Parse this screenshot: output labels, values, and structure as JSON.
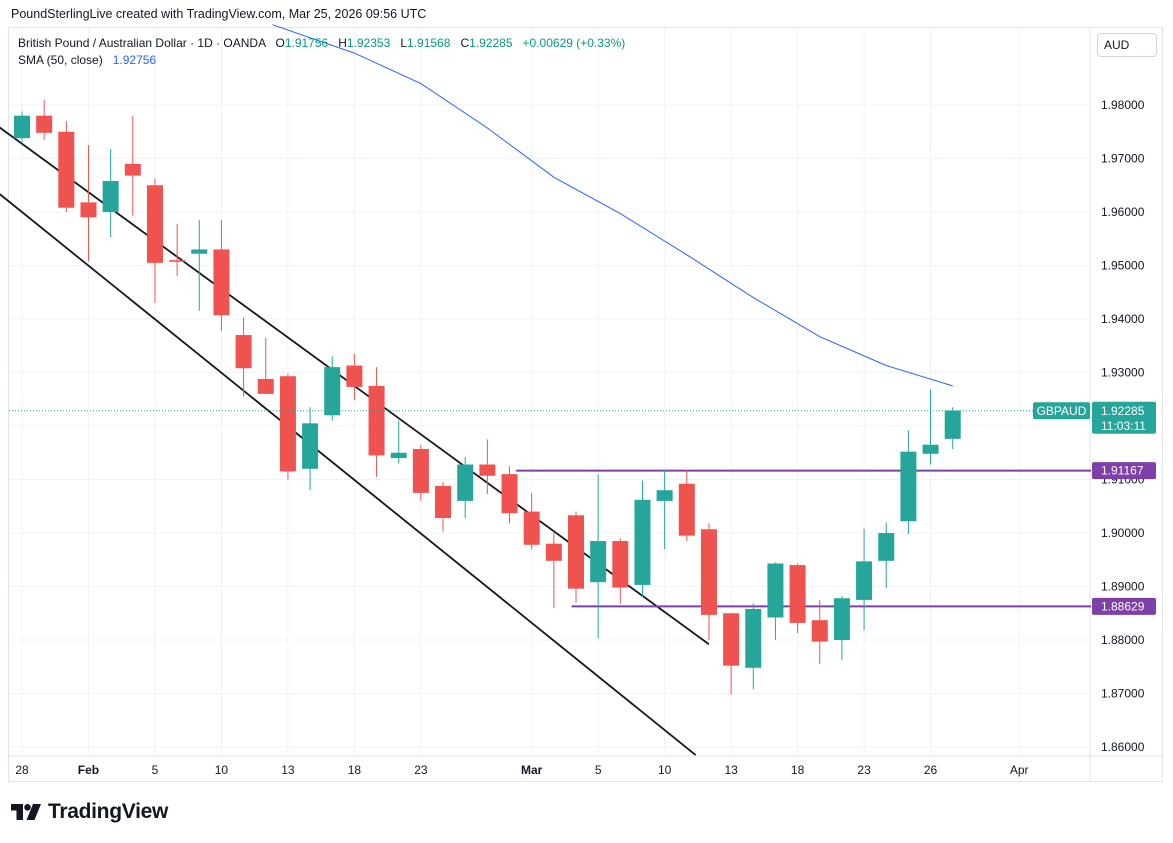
{
  "header": "PoundSterlingLive created with TradingView.com, Mar 25, 2026 09:56 UTC",
  "legend": {
    "symbol": "British Pound / Australian Dollar · 1D · OANDA",
    "o_label": "O",
    "o_value": "1.91756",
    "h_label": "H",
    "h_value": "1.92353",
    "l_label": "L",
    "l_value": "1.91568",
    "c_label": "C",
    "c_value": "1.92285",
    "change": "+0.00629 (+0.33%)",
    "sma_label": "SMA (50, close)",
    "sma_value": "1.92756"
  },
  "currency": "AUD",
  "brand": "TradingView",
  "colors": {
    "up": "#26a69a",
    "down": "#ef5350",
    "sma": "#2962ff",
    "level": "#7e3fa8",
    "channel": "#131722",
    "grid": "#f0f3fa",
    "last_price": "#26a69a"
  },
  "chart_data": {
    "type": "candlestick",
    "title": "British Pound / Australian Dollar · 1D · OANDA",
    "ylim": [
      1.855,
      1.99
    ],
    "y_ticks": [
      "1.98000",
      "1.97000",
      "1.96000",
      "1.95000",
      "1.94000",
      "1.93000",
      "1.92000",
      "1.91000",
      "1.90000",
      "1.89000",
      "1.88000",
      "1.87000",
      "1.86000"
    ],
    "x_ticks": [
      {
        "label": "28",
        "index": 0
      },
      {
        "label": "Feb",
        "index": 3
      },
      {
        "label": "5",
        "index": 6
      },
      {
        "label": "10",
        "index": 9
      },
      {
        "label": "13",
        "index": 12
      },
      {
        "label": "18",
        "index": 15
      },
      {
        "label": "23",
        "index": 18
      },
      {
        "label": "Mar",
        "index": 23
      },
      {
        "label": "5",
        "index": 26
      },
      {
        "label": "10",
        "index": 29
      },
      {
        "label": "13",
        "index": 32
      },
      {
        "label": "18",
        "index": 35
      },
      {
        "label": "23",
        "index": 38
      },
      {
        "label": "26",
        "index": 41
      },
      {
        "label": "Apr",
        "index": 45
      }
    ],
    "candles": [
      {
        "o": 1.9738,
        "h": 1.9788,
        "l": 1.9728,
        "c": 1.978
      },
      {
        "o": 1.978,
        "h": 1.981,
        "l": 1.9735,
        "c": 1.9748
      },
      {
        "o": 1.975,
        "h": 1.977,
        "l": 1.96,
        "c": 1.9608
      },
      {
        "o": 1.9618,
        "h": 1.9725,
        "l": 1.9508,
        "c": 1.959
      },
      {
        "o": 1.96,
        "h": 1.9718,
        "l": 1.9553,
        "c": 1.9658
      },
      {
        "o": 1.969,
        "h": 1.978,
        "l": 1.9593,
        "c": 1.9668
      },
      {
        "o": 1.965,
        "h": 1.9663,
        "l": 1.943,
        "c": 1.9505
      },
      {
        "o": 1.951,
        "h": 1.9578,
        "l": 1.948,
        "c": 1.9507
      },
      {
        "o": 1.9522,
        "h": 1.9585,
        "l": 1.9415,
        "c": 1.953
      },
      {
        "o": 1.953,
        "h": 1.9585,
        "l": 1.9378,
        "c": 1.9407
      },
      {
        "o": 1.937,
        "h": 1.9403,
        "l": 1.9255,
        "c": 1.9308
      },
      {
        "o": 1.9288,
        "h": 1.9365,
        "l": 1.926,
        "c": 1.926
      },
      {
        "o": 1.9293,
        "h": 1.9298,
        "l": 1.91,
        "c": 1.9115
      },
      {
        "o": 1.912,
        "h": 1.9235,
        "l": 1.908,
        "c": 1.9205
      },
      {
        "o": 1.922,
        "h": 1.933,
        "l": 1.921,
        "c": 1.931
      },
      {
        "o": 1.9313,
        "h": 1.9335,
        "l": 1.9248,
        "c": 1.9273
      },
      {
        "o": 1.9275,
        "h": 1.931,
        "l": 1.9105,
        "c": 1.9145
      },
      {
        "o": 1.914,
        "h": 1.921,
        "l": 1.913,
        "c": 1.915
      },
      {
        "o": 1.9157,
        "h": 1.9165,
        "l": 1.906,
        "c": 1.9075
      },
      {
        "o": 1.9088,
        "h": 1.9095,
        "l": 1.9003,
        "c": 1.9028
      },
      {
        "o": 1.906,
        "h": 1.9142,
        "l": 1.9028,
        "c": 1.9128
      },
      {
        "o": 1.9128,
        "h": 1.9175,
        "l": 1.9073,
        "c": 1.9107
      },
      {
        "o": 1.911,
        "h": 1.9125,
        "l": 1.9018,
        "c": 1.9037
      },
      {
        "o": 1.904,
        "h": 1.9075,
        "l": 1.897,
        "c": 1.8978
      },
      {
        "o": 1.898,
        "h": 1.9003,
        "l": 1.886,
        "c": 1.8948
      },
      {
        "o": 1.9033,
        "h": 1.904,
        "l": 1.887,
        "c": 1.8896
      },
      {
        "o": 1.8908,
        "h": 1.911,
        "l": 1.8803,
        "c": 1.8985
      },
      {
        "o": 1.8985,
        "h": 1.899,
        "l": 1.8868,
        "c": 1.8898
      },
      {
        "o": 1.8903,
        "h": 1.9098,
        "l": 1.888,
        "c": 1.9062
      },
      {
        "o": 1.906,
        "h": 1.9118,
        "l": 1.897,
        "c": 1.908
      },
      {
        "o": 1.9092,
        "h": 1.9118,
        "l": 1.8985,
        "c": 1.8995
      },
      {
        "o": 1.9007,
        "h": 1.9018,
        "l": 1.88,
        "c": 1.8847
      },
      {
        "o": 1.885,
        "h": 1.885,
        "l": 1.8698,
        "c": 1.8752
      },
      {
        "o": 1.8748,
        "h": 1.8868,
        "l": 1.8708,
        "c": 1.8858
      },
      {
        "o": 1.8842,
        "h": 1.8945,
        "l": 1.88,
        "c": 1.8943
      },
      {
        "o": 1.894,
        "h": 1.8943,
        "l": 1.8813,
        "c": 1.8832
      },
      {
        "o": 1.8837,
        "h": 1.8875,
        "l": 1.8755,
        "c": 1.8797
      },
      {
        "o": 1.88,
        "h": 1.8882,
        "l": 1.8762,
        "c": 1.8878
      },
      {
        "o": 1.8875,
        "h": 1.9008,
        "l": 1.8818,
        "c": 1.8947
      },
      {
        "o": 1.8948,
        "h": 1.902,
        "l": 1.8897,
        "c": 1.9
      },
      {
        "o": 1.9022,
        "h": 1.9192,
        "l": 1.8998,
        "c": 1.9152
      },
      {
        "o": 1.9148,
        "h": 1.9268,
        "l": 1.9128,
        "c": 1.9165
      },
      {
        "o": 1.9176,
        "h": 1.9235,
        "l": 1.9157,
        "c": 1.9229
      }
    ],
    "sma": {
      "name": "SMA (50, close)",
      "points": [
        {
          "i": 11.3,
          "v": 1.995
        },
        {
          "i": 15,
          "v": 1.9897
        },
        {
          "i": 18,
          "v": 1.984
        },
        {
          "i": 21,
          "v": 1.9757
        },
        {
          "i": 24,
          "v": 1.9665
        },
        {
          "i": 27,
          "v": 1.9597
        },
        {
          "i": 30,
          "v": 1.952
        },
        {
          "i": 33,
          "v": 1.944
        },
        {
          "i": 36,
          "v": 1.9367
        },
        {
          "i": 39,
          "v": 1.9313
        },
        {
          "i": 42,
          "v": 1.9275
        }
      ]
    },
    "channel_lines": [
      {
        "from": {
          "i": -2.4,
          "v": 1.98
        },
        "to": {
          "i": 31,
          "v": 1.8792
        }
      },
      {
        "from": {
          "i": -2.4,
          "v": 1.968
        },
        "to": {
          "i": 30.4,
          "v": 1.8585
        }
      }
    ],
    "levels": [
      {
        "value": 1.91167,
        "label": "1.91167",
        "start_index": 22.3
      },
      {
        "value": 1.88629,
        "label": "1.88629",
        "start_index": 24.8
      }
    ],
    "last_price": {
      "symbol": "GBPAUD",
      "value": 1.92285,
      "label": "1.92285",
      "countdown": "11:03:11"
    }
  }
}
